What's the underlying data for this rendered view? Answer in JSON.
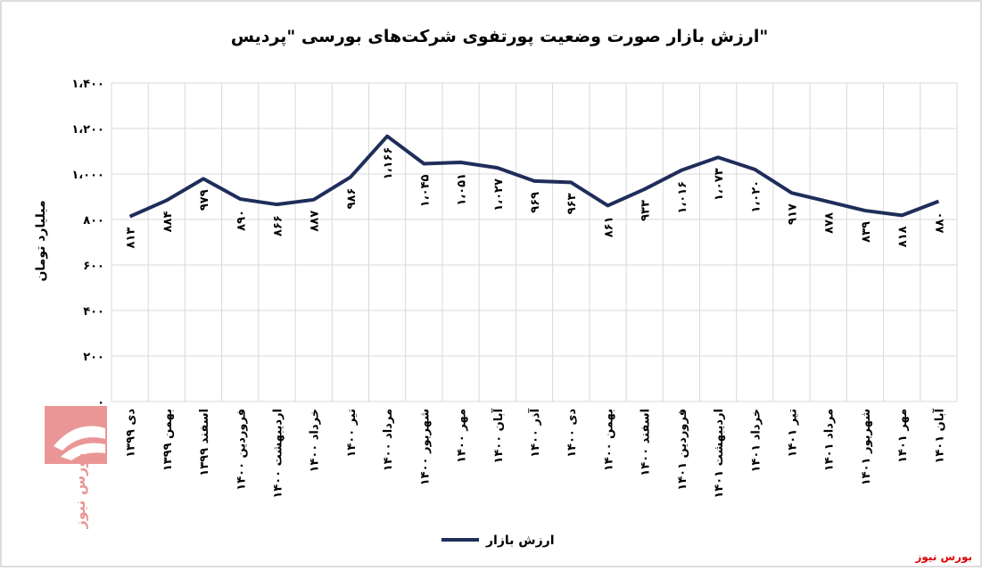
{
  "chart_data": {
    "type": "line",
    "title": "ارزش بازار صورت وضعیت پورتفوی شرکت‌های بورسی \"پردیس\"",
    "y_label": "میلیارد تومان",
    "categories": [
      "دی ۱۳۹۹",
      "بهمن ۱۳۹۹",
      "اسفند ۱۳۹۹",
      "فروردین ۱۴۰۰",
      "اردیبهشت ۱۴۰۰",
      "خرداد ۱۴۰۰",
      "تیر ۱۴۰۰",
      "مرداد ۱۴۰۰",
      "شهریور ۱۴۰۰",
      "مهر ۱۴۰۰",
      "آبان ۱۴۰۰",
      "آذر ۱۴۰۰",
      "دی ۱۴۰۰",
      "بهمن ۱۴۰۰",
      "اسفند ۱۴۰۰",
      "فروردین ۱۴۰۱",
      "اردیبهشت ۱۴۰۱",
      "خرداد ۱۴۰۱",
      "تیر ۱۴۰۱",
      "مرداد ۱۴۰۱",
      "شهریور ۱۴۰۱",
      "مهر ۱۴۰۱",
      "آبان ۱۴۰۱"
    ],
    "series": [
      {
        "name": "ارزش بازار",
        "color": "#1f2d5a",
        "values": [
          813,
          884,
          979,
          890,
          866,
          887,
          986,
          1166,
          1045,
          1051,
          1027,
          969,
          963,
          861,
          933,
          1016,
          1073,
          1020,
          917,
          878,
          839,
          818,
          880
        ],
        "value_labels": [
          "۸۱۳",
          "۸۸۴",
          "۹۷۹",
          "۸۹۰",
          "۸۶۶",
          "۸۸۷",
          "۹۸۶",
          "۱،۱۶۶",
          "۱،۰۴۵",
          "۱،۰۵۱",
          "۱،۰۲۷",
          "۹۶۹",
          "۹۶۳",
          "۸۶۱",
          "۹۳۳",
          "۱،۰۱۶",
          "۱،۰۷۳",
          "۱،۰۲۰",
          "۹۱۷",
          "۸۷۸",
          "۸۳۹",
          "۸۱۸",
          "۸۸۰"
        ]
      }
    ],
    "ylim": [
      0,
      1400
    ],
    "yticks": [
      {
        "value": 0,
        "label": "۰"
      },
      {
        "value": 200,
        "label": "۲۰۰"
      },
      {
        "value": 400,
        "label": "۴۰۰"
      },
      {
        "value": 600,
        "label": "۶۰۰"
      },
      {
        "value": 800,
        "label": "۸۰۰"
      },
      {
        "value": 1000,
        "label": "۱،۰۰۰"
      },
      {
        "value": 1200,
        "label": "۱،۲۰۰"
      },
      {
        "value": 1400,
        "label": "۱،۴۰۰"
      }
    ],
    "grid": true,
    "legend": "bottom"
  },
  "logo_text": "بورس نیوز",
  "watermark": "بورس نیوز"
}
